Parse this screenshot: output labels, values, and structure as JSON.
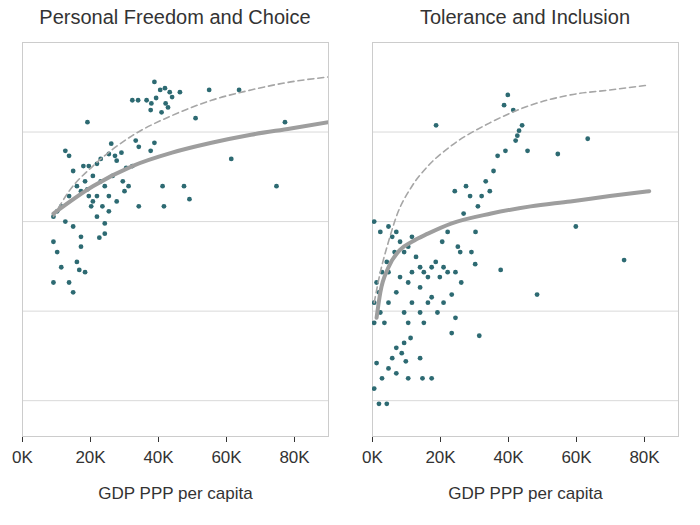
{
  "chart_data": [
    {
      "type": "scatter",
      "title": "Personal Freedom and Choice",
      "x_label": "GDP PPP per capita",
      "xlim": [
        0,
        90000
      ],
      "xticks": [
        {
          "value": 0,
          "label": "0K"
        },
        {
          "value": 20000,
          "label": "20K"
        },
        {
          "value": 40000,
          "label": "40K"
        },
        {
          "value": 60000,
          "label": "60K"
        },
        {
          "value": 80000,
          "label": "80K"
        }
      ],
      "ylim": [
        12,
        100
      ],
      "yticks": [
        20,
        40,
        60,
        80
      ],
      "grid": true,
      "tick_labels": "x",
      "series": [
        {
          "type": "scatter",
          "color": "#2d6a72",
          "marker": "circle",
          "x": [
            38800,
            40500,
            41900,
            43300,
            36500,
            37900,
            39300,
            42100,
            44000,
            46300,
            32300,
            34000,
            37700,
            40900,
            42800,
            54900,
            63700,
            50900,
            77200,
            19100,
            26100,
            25400,
            27200,
            29100,
            23000,
            21900,
            19500,
            17900,
            12600,
            13700,
            14900,
            27700,
            30500,
            32300,
            29500,
            31200,
            30000,
            33300,
            34200,
            37700,
            38800,
            41200,
            47500,
            41600,
            49100,
            61400,
            74700,
            34200,
            27700,
            25400,
            24200,
            22600,
            24200,
            21900,
            20700,
            19500,
            17200,
            16000,
            18400,
            13700,
            11400,
            10200,
            9100,
            12600,
            14900,
            17200,
            17200,
            16000,
            16700,
            18400,
            13700,
            14900,
            11400,
            10200,
            9100,
            9100,
            23000,
            24200,
            20700,
            26500,
            19100,
            21900,
            20200,
            23500,
            25400
          ],
          "values": [
            91.2,
            89.4,
            89.8,
            88.9,
            87.1,
            86.4,
            87.6,
            86.4,
            87.8,
            88.9,
            87.1,
            87.1,
            84.9,
            84.4,
            85.5,
            89.4,
            89.4,
            83.1,
            82.2,
            82.2,
            77.4,
            75.1,
            74.7,
            75.4,
            74.0,
            72.9,
            72.4,
            72.4,
            75.8,
            74.7,
            71.3,
            73.6,
            72.0,
            72.4,
            69.0,
            67.9,
            66.8,
            78.1,
            76.7,
            75.8,
            77.6,
            67.9,
            67.9,
            63.4,
            65.0,
            74.0,
            67.9,
            63.4,
            64.5,
            62.3,
            59.6,
            56.4,
            57.3,
            61.1,
            64.5,
            65.7,
            66.8,
            67.9,
            69.0,
            65.7,
            63.4,
            62.3,
            61.1,
            60.0,
            58.9,
            56.6,
            54.4,
            51.0,
            49.2,
            48.7,
            46.4,
            44.2,
            49.8,
            53.2,
            55.5,
            46.4,
            69.0,
            67.9,
            70.2,
            70.2,
            67.2,
            65.7,
            63.4,
            63.4,
            65.7
          ]
        },
        {
          "type": "line",
          "color": "#a6a6a6",
          "line_style": "dashed",
          "x": [
            9100,
            13700,
            20700,
            32300,
            44000,
            55600,
            67200,
            78900,
            90000
          ],
          "values": [
            61.1,
            66.8,
            72.4,
            79.2,
            83.7,
            87.1,
            89.4,
            91.2,
            92.3
          ]
        },
        {
          "type": "line",
          "color": "#9e9e9e",
          "line_style": "solid",
          "x": [
            9100,
            20700,
            32300,
            44000,
            55600,
            67200,
            78900,
            90000
          ],
          "values": [
            61.8,
            67.9,
            72.4,
            75.4,
            77.6,
            79.4,
            80.8,
            82.2
          ]
        }
      ]
    },
    {
      "type": "scatter",
      "title": "Tolerance and Inclusion",
      "x_label": "GDP PPP per capita",
      "xlim": [
        0,
        90000
      ],
      "xticks": [
        {
          "value": 0,
          "label": "0K"
        },
        {
          "value": 20000,
          "label": "20K"
        },
        {
          "value": 40000,
          "label": "40K"
        },
        {
          "value": 60000,
          "label": "60K"
        },
        {
          "value": 80000,
          "label": "80K"
        }
      ],
      "ylim": [
        12,
        100
      ],
      "yticks": [
        20,
        40,
        60,
        80
      ],
      "grid": true,
      "tick_labels": "x",
      "series": [
        {
          "type": "scatter",
          "color": "#2d6a72",
          "marker": "circle",
          "x": [
            39800,
            38700,
            41400,
            43100,
            42600,
            44000,
            42100,
            39100,
            36800,
            35600,
            33300,
            34500,
            32100,
            31000,
            28700,
            27500,
            18700,
            45600,
            54500,
            63300,
            59800,
            74000,
            37700,
            30300,
            48400,
            24200,
            26800,
            22100,
            20500,
            500,
            2300,
            4700,
            5800,
            7000,
            8100,
            9300,
            10500,
            11600,
            12800,
            14000,
            6500,
            4200,
            2800,
            4700,
            1200,
            1900,
            500,
            2300,
            500,
            3500,
            4700,
            7000,
            8100,
            10500,
            11600,
            14000,
            15100,
            16300,
            17400,
            18600,
            19800,
            20900,
            22100,
            16300,
            14000,
            11600,
            9300,
            10500,
            15100,
            17400,
            19100,
            20900,
            24400,
            23300,
            31400,
            11200,
            9300,
            7000,
            8600,
            5800,
            9800,
            4700,
            7000,
            10500,
            2800,
            1200,
            500,
            1900,
            4200,
            14700,
            17400,
            14000,
            23300,
            26100,
            24400,
            29100,
            25100,
            30200,
            25800
          ],
          "values": [
            88.3,
            86.0,
            84.9,
            80.3,
            79.2,
            81.5,
            78.1,
            75.8,
            74.7,
            71.3,
            69.0,
            66.8,
            65.7,
            63.4,
            65.7,
            67.9,
            81.5,
            75.8,
            75.1,
            78.5,
            58.9,
            51.4,
            49.2,
            57.7,
            43.7,
            66.8,
            61.8,
            57.7,
            55.5,
            60.0,
            57.7,
            58.9,
            56.6,
            57.7,
            55.5,
            53.2,
            54.4,
            56.6,
            52.1,
            49.8,
            53.2,
            51.0,
            48.7,
            48.7,
            46.4,
            44.2,
            41.9,
            39.7,
            37.4,
            37.4,
            41.9,
            44.2,
            47.6,
            46.4,
            48.7,
            45.3,
            48.7,
            47.6,
            49.8,
            51.0,
            47.6,
            49.8,
            48.7,
            41.9,
            39.7,
            41.9,
            39.7,
            37.4,
            37.4,
            43.1,
            39.7,
            41.9,
            38.5,
            35.1,
            34.5,
            34.0,
            32.9,
            31.8,
            30.6,
            29.5,
            28.8,
            27.2,
            26.1,
            25.0,
            25.0,
            28.4,
            22.7,
            19.3,
            19.3,
            25.0,
            25.0,
            29.5,
            43.7,
            46.4,
            48.7,
            53.2,
            54.4,
            50.5,
            53.2
          ]
        },
        {
          "type": "line",
          "color": "#a6a6a6",
          "line_style": "dashed",
          "x": [
            500,
            2300,
            4700,
            7000,
            11600,
            16300,
            23300,
            34900,
            46500,
            58200,
            69800,
            81400
          ],
          "values": [
            41.9,
            48.7,
            55.5,
            61.1,
            67.9,
            72.4,
            77.0,
            82.2,
            86.0,
            88.3,
            89.4,
            90.5
          ]
        },
        {
          "type": "line",
          "color": "#9e9e9e",
          "line_style": "solid",
          "x": [
            1200,
            2300,
            4700,
            8100,
            11600,
            16300,
            23300,
            34900,
            46500,
            58200,
            69800,
            81400
          ],
          "values": [
            38.5,
            44.2,
            49.8,
            53.7,
            55.5,
            57.3,
            59.6,
            61.8,
            63.4,
            64.5,
            65.7,
            66.8
          ]
        }
      ]
    }
  ]
}
